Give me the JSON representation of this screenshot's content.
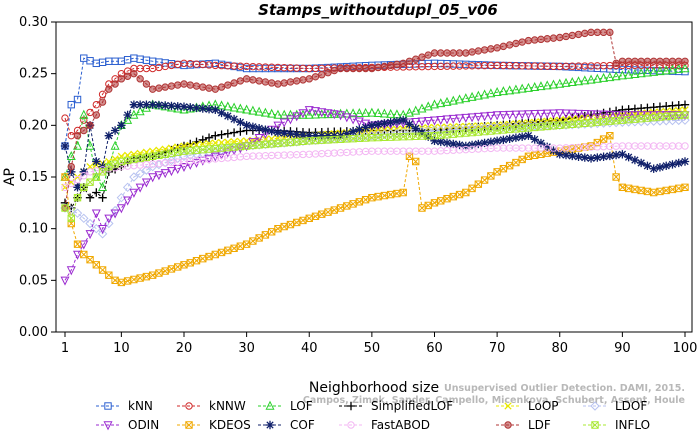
{
  "chart_data": {
    "type": "line",
    "title": "Stamps_withoutdupl_05_v06",
    "xlabel": "Neighborhood size",
    "ylabel": "AP",
    "xlim": [
      1,
      100
    ],
    "ylim": [
      0,
      0.3
    ],
    "xticks": [
      "1",
      "10",
      "20",
      "30",
      "40",
      "50",
      "60",
      "70",
      "80",
      "90",
      "100"
    ],
    "yticks": [
      "0.00",
      "0.05",
      "0.10",
      "0.15",
      "0.20",
      "0.25",
      "0.30"
    ],
    "watermark": [
      "Campos, Zimek, Sander, Campello, Micenkova, Schubert, Assent, Houle",
      "Unsupervised Outlier Detection. DAMI, 2015."
    ],
    "legend_position": "bottom",
    "series": [
      {
        "name": "kNN",
        "color": "#2b5fd0",
        "marker": "square",
        "points": [
          [
            1,
            0.18
          ],
          [
            2,
            0.22
          ],
          [
            3,
            0.225
          ],
          [
            4,
            0.265
          ],
          [
            6,
            0.26
          ],
          [
            8,
            0.262
          ],
          [
            10,
            0.262
          ],
          [
            12,
            0.265
          ],
          [
            15,
            0.262
          ],
          [
            20,
            0.258
          ],
          [
            25,
            0.26
          ],
          [
            30,
            0.255
          ],
          [
            40,
            0.255
          ],
          [
            50,
            0.258
          ],
          [
            60,
            0.26
          ],
          [
            70,
            0.258
          ],
          [
            80,
            0.257
          ],
          [
            90,
            0.254
          ],
          [
            100,
            0.252
          ]
        ]
      },
      {
        "name": "kNNW",
        "color": "#d02a2a",
        "marker": "circle",
        "points": [
          [
            1,
            0.207
          ],
          [
            2,
            0.19
          ],
          [
            3,
            0.195
          ],
          [
            4,
            0.205
          ],
          [
            6,
            0.22
          ],
          [
            8,
            0.24
          ],
          [
            10,
            0.25
          ],
          [
            12,
            0.255
          ],
          [
            15,
            0.255
          ],
          [
            20,
            0.26
          ],
          [
            25,
            0.258
          ],
          [
            30,
            0.257
          ],
          [
            40,
            0.255
          ],
          [
            50,
            0.256
          ],
          [
            60,
            0.257
          ],
          [
            70,
            0.258
          ],
          [
            80,
            0.257
          ],
          [
            90,
            0.258
          ],
          [
            100,
            0.258
          ]
        ]
      },
      {
        "name": "LOF",
        "color": "#2ad02a",
        "marker": "triangle-up",
        "points": [
          [
            1,
            0.15
          ],
          [
            2,
            0.17
          ],
          [
            3,
            0.18
          ],
          [
            4,
            0.21
          ],
          [
            5,
            0.18
          ],
          [
            6,
            0.15
          ],
          [
            7,
            0.14
          ],
          [
            8,
            0.16
          ],
          [
            9,
            0.18
          ],
          [
            10,
            0.2
          ],
          [
            12,
            0.21
          ],
          [
            15,
            0.22
          ],
          [
            20,
            0.215
          ],
          [
            25,
            0.22
          ],
          [
            30,
            0.215
          ],
          [
            35,
            0.21
          ],
          [
            40,
            0.21
          ],
          [
            50,
            0.212
          ],
          [
            55,
            0.21
          ],
          [
            60,
            0.22
          ],
          [
            70,
            0.232
          ],
          [
            80,
            0.24
          ],
          [
            90,
            0.248
          ],
          [
            100,
            0.255
          ]
        ]
      },
      {
        "name": "SimplifiedLOF",
        "color": "#000000",
        "marker": "plus",
        "points": [
          [
            1,
            0.125
          ],
          [
            2,
            0.12
          ],
          [
            3,
            0.13
          ],
          [
            4,
            0.14
          ],
          [
            5,
            0.13
          ],
          [
            6,
            0.135
          ],
          [
            7,
            0.13
          ],
          [
            8,
            0.155
          ],
          [
            10,
            0.16
          ],
          [
            12,
            0.168
          ],
          [
            15,
            0.17
          ],
          [
            20,
            0.18
          ],
          [
            25,
            0.19
          ],
          [
            30,
            0.195
          ],
          [
            35,
            0.195
          ],
          [
            40,
            0.193
          ],
          [
            50,
            0.195
          ],
          [
            60,
            0.195
          ],
          [
            70,
            0.2
          ],
          [
            80,
            0.205
          ],
          [
            90,
            0.215
          ],
          [
            100,
            0.22
          ]
        ]
      },
      {
        "name": "LoOP",
        "color": "#e8e800",
        "marker": "x",
        "points": [
          [
            1,
            0.14
          ],
          [
            3,
            0.15
          ],
          [
            5,
            0.16
          ],
          [
            8,
            0.165
          ],
          [
            10,
            0.17
          ],
          [
            15,
            0.175
          ],
          [
            20,
            0.18
          ],
          [
            25,
            0.183
          ],
          [
            30,
            0.185
          ],
          [
            40,
            0.19
          ],
          [
            50,
            0.195
          ],
          [
            60,
            0.198
          ],
          [
            70,
            0.2
          ],
          [
            80,
            0.205
          ],
          [
            90,
            0.21
          ],
          [
            100,
            0.215
          ]
        ]
      },
      {
        "name": "LDOF",
        "color": "#b7c2f0",
        "marker": "diamond",
        "points": [
          [
            1,
            0.12
          ],
          [
            3,
            0.115
          ],
          [
            5,
            0.105
          ],
          [
            7,
            0.095
          ],
          [
            8,
            0.105
          ],
          [
            10,
            0.13
          ],
          [
            12,
            0.15
          ],
          [
            15,
            0.16
          ],
          [
            20,
            0.17
          ],
          [
            25,
            0.175
          ],
          [
            30,
            0.18
          ],
          [
            40,
            0.185
          ],
          [
            50,
            0.19
          ],
          [
            60,
            0.195
          ],
          [
            70,
            0.198
          ],
          [
            80,
            0.2
          ],
          [
            90,
            0.203
          ],
          [
            100,
            0.205
          ]
        ]
      },
      {
        "name": "ODIN",
        "color": "#9a2ad0",
        "marker": "triangle-down",
        "points": [
          [
            1,
            0.05
          ],
          [
            2,
            0.06
          ],
          [
            3,
            0.075
          ],
          [
            4,
            0.085
          ],
          [
            5,
            0.095
          ],
          [
            6,
            0.115
          ],
          [
            7,
            0.1
          ],
          [
            8,
            0.11
          ],
          [
            10,
            0.12
          ],
          [
            12,
            0.135
          ],
          [
            15,
            0.15
          ],
          [
            20,
            0.16
          ],
          [
            25,
            0.17
          ],
          [
            30,
            0.18
          ],
          [
            35,
            0.2
          ],
          [
            40,
            0.215
          ],
          [
            45,
            0.21
          ],
          [
            50,
            0.2
          ],
          [
            60,
            0.205
          ],
          [
            70,
            0.21
          ],
          [
            80,
            0.212
          ],
          [
            90,
            0.21
          ],
          [
            100,
            0.21
          ]
        ]
      },
      {
        "name": "KDEOS",
        "color": "#f0a800",
        "marker": "square-x",
        "points": [
          [
            1,
            0.15
          ],
          [
            2,
            0.105
          ],
          [
            3,
            0.085
          ],
          [
            4,
            0.075
          ],
          [
            5,
            0.07
          ],
          [
            6,
            0.065
          ],
          [
            7,
            0.06
          ],
          [
            8,
            0.055
          ],
          [
            9,
            0.05
          ],
          [
            10,
            0.048
          ],
          [
            15,
            0.055
          ],
          [
            20,
            0.065
          ],
          [
            25,
            0.075
          ],
          [
            30,
            0.085
          ],
          [
            35,
            0.1
          ],
          [
            40,
            0.11
          ],
          [
            45,
            0.12
          ],
          [
            50,
            0.13
          ],
          [
            55,
            0.135
          ],
          [
            56,
            0.17
          ],
          [
            57,
            0.165
          ],
          [
            58,
            0.12
          ],
          [
            60,
            0.125
          ],
          [
            65,
            0.135
          ],
          [
            70,
            0.155
          ],
          [
            75,
            0.17
          ],
          [
            80,
            0.175
          ],
          [
            85,
            0.18
          ],
          [
            88,
            0.19
          ],
          [
            89,
            0.15
          ],
          [
            90,
            0.14
          ],
          [
            95,
            0.135
          ],
          [
            100,
            0.14
          ]
        ]
      },
      {
        "name": "COF",
        "color": "#10206a",
        "marker": "star",
        "points": [
          [
            1,
            0.18
          ],
          [
            2,
            0.155
          ],
          [
            3,
            0.14
          ],
          [
            4,
            0.155
          ],
          [
            5,
            0.2
          ],
          [
            6,
            0.165
          ],
          [
            7,
            0.16
          ],
          [
            8,
            0.19
          ],
          [
            10,
            0.2
          ],
          [
            12,
            0.22
          ],
          [
            15,
            0.22
          ],
          [
            20,
            0.218
          ],
          [
            25,
            0.215
          ],
          [
            30,
            0.2
          ],
          [
            35,
            0.193
          ],
          [
            40,
            0.19
          ],
          [
            45,
            0.19
          ],
          [
            50,
            0.2
          ],
          [
            55,
            0.205
          ],
          [
            60,
            0.185
          ],
          [
            65,
            0.18
          ],
          [
            70,
            0.185
          ],
          [
            75,
            0.19
          ],
          [
            80,
            0.172
          ],
          [
            85,
            0.168
          ],
          [
            90,
            0.172
          ],
          [
            95,
            0.158
          ],
          [
            100,
            0.165
          ]
        ]
      },
      {
        "name": "FastABOD",
        "color": "#f3b6f3",
        "marker": "circle",
        "points": [
          [
            1,
            0.14
          ],
          [
            5,
            0.155
          ],
          [
            10,
            0.16
          ],
          [
            20,
            0.165
          ],
          [
            30,
            0.17
          ],
          [
            40,
            0.172
          ],
          [
            50,
            0.175
          ],
          [
            60,
            0.175
          ],
          [
            70,
            0.178
          ],
          [
            80,
            0.178
          ],
          [
            90,
            0.18
          ],
          [
            100,
            0.18
          ]
        ]
      },
      {
        "name": "LDF",
        "color": "#b03535",
        "marker": "circle-filled",
        "points": [
          [
            1,
            0.12
          ],
          [
            2,
            0.16
          ],
          [
            3,
            0.19
          ],
          [
            4,
            0.195
          ],
          [
            5,
            0.2
          ],
          [
            6,
            0.21
          ],
          [
            8,
            0.235
          ],
          [
            10,
            0.245
          ],
          [
            12,
            0.25
          ],
          [
            15,
            0.235
          ],
          [
            20,
            0.24
          ],
          [
            25,
            0.235
          ],
          [
            30,
            0.245
          ],
          [
            35,
            0.24
          ],
          [
            40,
            0.245
          ],
          [
            45,
            0.255
          ],
          [
            50,
            0.255
          ],
          [
            55,
            0.26
          ],
          [
            60,
            0.27
          ],
          [
            65,
            0.27
          ],
          [
            70,
            0.275
          ],
          [
            75,
            0.282
          ],
          [
            80,
            0.285
          ],
          [
            85,
            0.29
          ],
          [
            88,
            0.29
          ],
          [
            89,
            0.26
          ],
          [
            90,
            0.262
          ],
          [
            95,
            0.262
          ],
          [
            100,
            0.262
          ]
        ]
      },
      {
        "name": "INFLO",
        "color": "#a8e830",
        "marker": "square-x",
        "points": [
          [
            1,
            0.12
          ],
          [
            2,
            0.11
          ],
          [
            3,
            0.13
          ],
          [
            4,
            0.14
          ],
          [
            6,
            0.15
          ],
          [
            8,
            0.16
          ],
          [
            10,
            0.165
          ],
          [
            15,
            0.17
          ],
          [
            20,
            0.175
          ],
          [
            30,
            0.18
          ],
          [
            40,
            0.185
          ],
          [
            50,
            0.188
          ],
          [
            60,
            0.19
          ],
          [
            70,
            0.195
          ],
          [
            80,
            0.2
          ],
          [
            90,
            0.205
          ],
          [
            100,
            0.21
          ]
        ]
      }
    ]
  }
}
